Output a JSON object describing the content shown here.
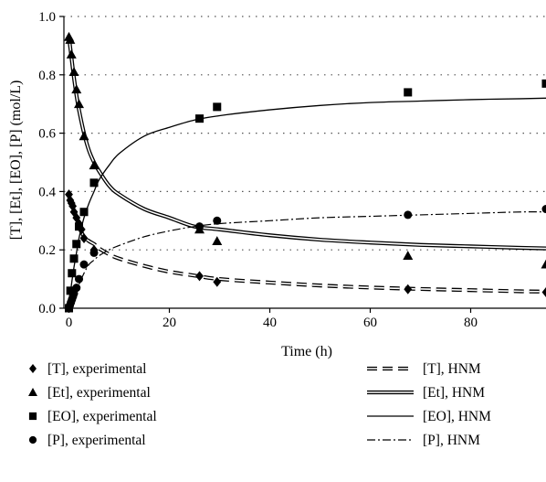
{
  "chart_data": {
    "type": "scatter",
    "xlabel": "Time (h)",
    "ylabel": "[T], [Et], [EO], [P] (mol/L)",
    "xlim": [
      -1,
      95
    ],
    "ylim": [
      0,
      1.0
    ],
    "x_ticks": [
      0,
      20,
      40,
      60,
      80
    ],
    "x_tick_labels": [
      "0",
      "20",
      "40",
      "60",
      "80"
    ],
    "y_ticks": [
      0,
      0.2,
      0.4,
      0.6,
      0.8,
      1.0
    ],
    "y_tick_labels": [
      "0.0",
      "0.2",
      "0.4",
      "0.6",
      "0.8",
      "1.0"
    ],
    "grid": "horizontal dotted",
    "legend_position": "bottom",
    "series": [
      {
        "name": "[T], experimental",
        "marker": "diamond",
        "kind": "points",
        "x": [
          0,
          0.25,
          0.5,
          0.75,
          1.0,
          1.5,
          2.0,
          2.5,
          3.0,
          5.0,
          26.0,
          29.5,
          67.5,
          95.0
        ],
        "y": [
          0.39,
          0.37,
          0.36,
          0.35,
          0.33,
          0.31,
          0.29,
          0.27,
          0.24,
          0.2,
          0.11,
          0.09,
          0.065,
          0.055
        ]
      },
      {
        "name": "[Et], experimental",
        "marker": "triangle",
        "kind": "points",
        "x": [
          0,
          0.25,
          0.5,
          1.0,
          1.5,
          2.0,
          3.0,
          5.0,
          26.0,
          29.5,
          67.5,
          95.0
        ],
        "y": [
          0.93,
          0.92,
          0.87,
          0.81,
          0.75,
          0.7,
          0.59,
          0.49,
          0.27,
          0.23,
          0.18,
          0.15
        ]
      },
      {
        "name": "[EO], experimental",
        "marker": "square",
        "kind": "points",
        "x": [
          0,
          0.3,
          0.6,
          1.0,
          1.5,
          2.0,
          3.0,
          5.0,
          26.0,
          29.5,
          67.5,
          95.0
        ],
        "y": [
          0.0,
          0.06,
          0.12,
          0.17,
          0.22,
          0.28,
          0.33,
          0.43,
          0.65,
          0.69,
          0.74,
          0.77
        ]
      },
      {
        "name": "[P], experimental",
        "marker": "circle",
        "kind": "points",
        "x": [
          0,
          0.2,
          0.4,
          0.6,
          0.8,
          1.0,
          1.5,
          2.0,
          3.0,
          5.0,
          26.0,
          29.5,
          67.5,
          95.0
        ],
        "y": [
          0.0,
          0.01,
          0.02,
          0.03,
          0.04,
          0.05,
          0.07,
          0.1,
          0.15,
          0.19,
          0.28,
          0.3,
          0.32,
          0.34
        ]
      },
      {
        "name": "[T], HNM",
        "line": "dashed-double",
        "kind": "curve",
        "x": [
          0,
          0.5,
          1,
          1.5,
          2,
          3,
          4,
          5,
          6,
          8,
          10,
          15,
          20,
          25,
          30,
          40,
          50,
          60,
          70,
          80,
          90,
          95
        ],
        "y": [
          0.38,
          0.36,
          0.34,
          0.31,
          0.28,
          0.245,
          0.23,
          0.22,
          0.205,
          0.185,
          0.17,
          0.145,
          0.125,
          0.112,
          0.1,
          0.088,
          0.078,
          0.071,
          0.066,
          0.062,
          0.058,
          0.057
        ]
      },
      {
        "name": "[Et], HNM",
        "line": "double",
        "kind": "curve",
        "x": [
          0,
          0.5,
          1,
          1.5,
          2,
          3,
          4,
          5,
          6,
          8,
          10,
          15,
          20,
          25,
          30,
          40,
          50,
          60,
          70,
          80,
          90,
          95
        ],
        "y": [
          0.93,
          0.86,
          0.79,
          0.73,
          0.68,
          0.6,
          0.54,
          0.5,
          0.47,
          0.42,
          0.39,
          0.34,
          0.31,
          0.28,
          0.27,
          0.25,
          0.235,
          0.225,
          0.217,
          0.212,
          0.207,
          0.205
        ]
      },
      {
        "name": "[EO], HNM",
        "line": "solid",
        "kind": "curve",
        "x": [
          0,
          0.5,
          1,
          1.5,
          2,
          3,
          4,
          5,
          6,
          8,
          10,
          15,
          20,
          25,
          30,
          40,
          50,
          60,
          70,
          80,
          90,
          95
        ],
        "y": [
          0.0,
          0.08,
          0.14,
          0.19,
          0.24,
          0.31,
          0.36,
          0.4,
          0.44,
          0.49,
          0.53,
          0.59,
          0.62,
          0.645,
          0.66,
          0.68,
          0.695,
          0.705,
          0.71,
          0.715,
          0.718,
          0.72
        ]
      },
      {
        "name": "[P], HNM",
        "line": "dashdot",
        "kind": "curve",
        "x": [
          0,
          0.5,
          1,
          1.5,
          2,
          3,
          4,
          5,
          6,
          8,
          10,
          15,
          20,
          25,
          30,
          40,
          50,
          60,
          70,
          80,
          90,
          95
        ],
        "y": [
          0.0,
          0.01,
          0.03,
          0.05,
          0.08,
          0.12,
          0.15,
          0.165,
          0.18,
          0.2,
          0.215,
          0.245,
          0.265,
          0.28,
          0.29,
          0.3,
          0.31,
          0.315,
          0.32,
          0.325,
          0.33,
          0.33
        ]
      }
    ]
  }
}
